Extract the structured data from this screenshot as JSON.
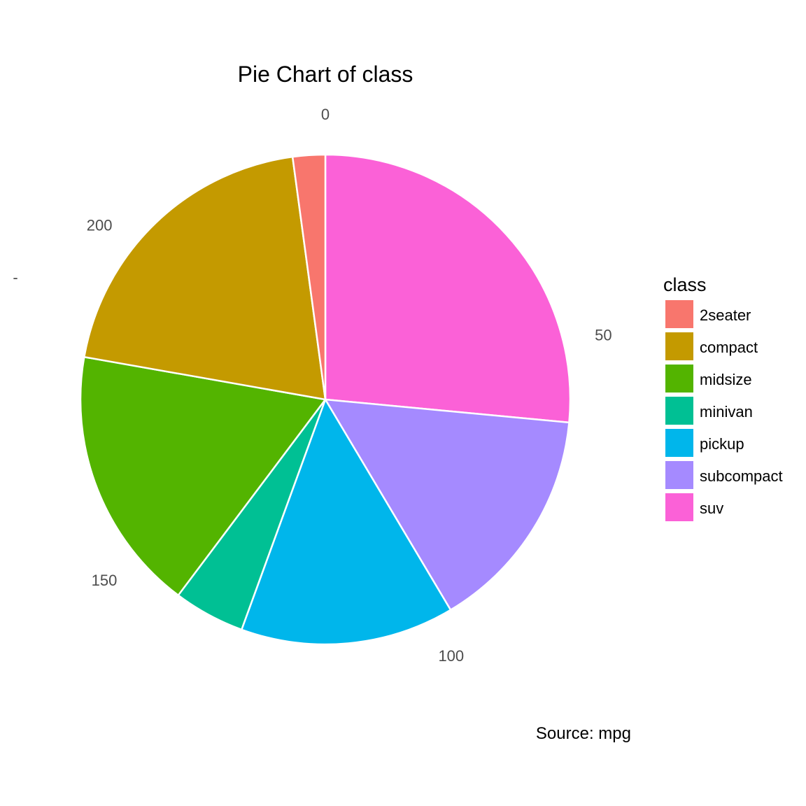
{
  "chart_data": {
    "type": "pie",
    "title": "Pie Chart of class",
    "caption": "Source: mpg",
    "y_axis_stray_label": "-",
    "legend": {
      "title": "class",
      "placement": "right"
    },
    "categories": [
      "2seater",
      "compact",
      "midsize",
      "minivan",
      "pickup",
      "subcompact",
      "suv"
    ],
    "values": [
      5,
      47,
      41,
      11,
      33,
      35,
      62
    ],
    "colors": [
      "#F8766D",
      "#C49A00",
      "#53B400",
      "#00C094",
      "#00B6EB",
      "#A58AFF",
      "#FB61D7"
    ],
    "ticks": [
      0,
      50,
      100,
      150,
      200
    ],
    "tick_labels": [
      "0",
      "50",
      "100",
      "150",
      "200"
    ],
    "total": 234
  }
}
